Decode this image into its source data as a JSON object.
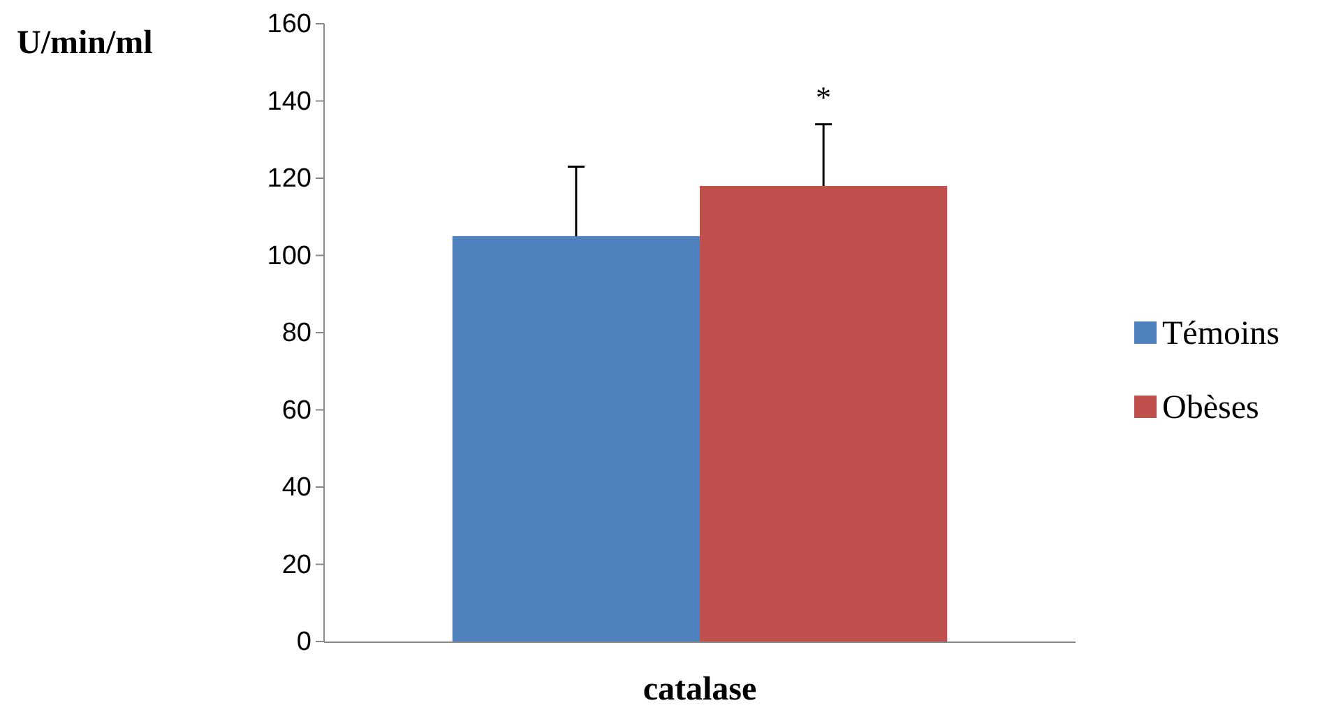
{
  "chart_data": {
    "type": "bar",
    "ylabel": "U/min/ml",
    "categories": [
      "catalase"
    ],
    "series": [
      {
        "name": "Témoins",
        "color": "#4f81bd",
        "values": [
          105
        ],
        "errors": [
          [
            105,
            123
          ]
        ]
      },
      {
        "name": "Obèses",
        "color": "#c0504d",
        "values": [
          118
        ],
        "errors": [
          [
            118,
            134
          ]
        ]
      }
    ],
    "annotations": [
      "*"
    ],
    "ylim": [
      0,
      160
    ],
    "yticks": [
      0,
      20,
      40,
      60,
      80,
      100,
      120,
      140,
      160
    ],
    "grid": false,
    "legend": "right"
  }
}
